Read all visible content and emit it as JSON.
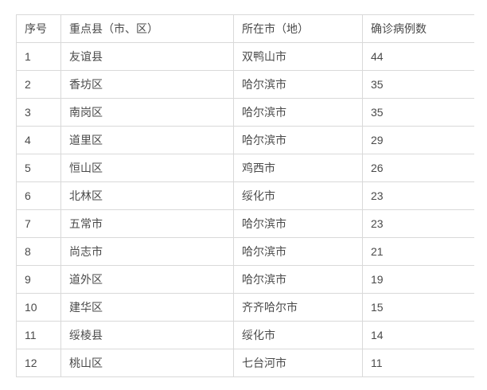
{
  "colors": {
    "background": "#ffffff",
    "border": "#d9d9d9",
    "text": "#4a4a4a"
  },
  "chart_data": {
    "type": "table",
    "title": "",
    "columns": [
      "序号",
      "重点县（市、区）",
      "所在市（地）",
      "确诊病例数"
    ],
    "rows": [
      [
        "1",
        "友谊县",
        "双鸭山市",
        "44"
      ],
      [
        "2",
        "香坊区",
        "哈尔滨市",
        "35"
      ],
      [
        "3",
        "南岗区",
        "哈尔滨市",
        "35"
      ],
      [
        "4",
        "道里区",
        "哈尔滨市",
        "29"
      ],
      [
        "5",
        "恒山区",
        "鸡西市",
        "26"
      ],
      [
        "6",
        "北林区",
        "绥化市",
        "23"
      ],
      [
        "7",
        "五常市",
        "哈尔滨市",
        "23"
      ],
      [
        "8",
        "尚志市",
        "哈尔滨市",
        "21"
      ],
      [
        "9",
        "道外区",
        "哈尔滨市",
        "19"
      ],
      [
        "10",
        "建华区",
        "齐齐哈尔市",
        "15"
      ],
      [
        "11",
        "绥棱县",
        "绥化市",
        "14"
      ],
      [
        "12",
        "桃山区",
        "七台河市",
        "11"
      ]
    ]
  }
}
